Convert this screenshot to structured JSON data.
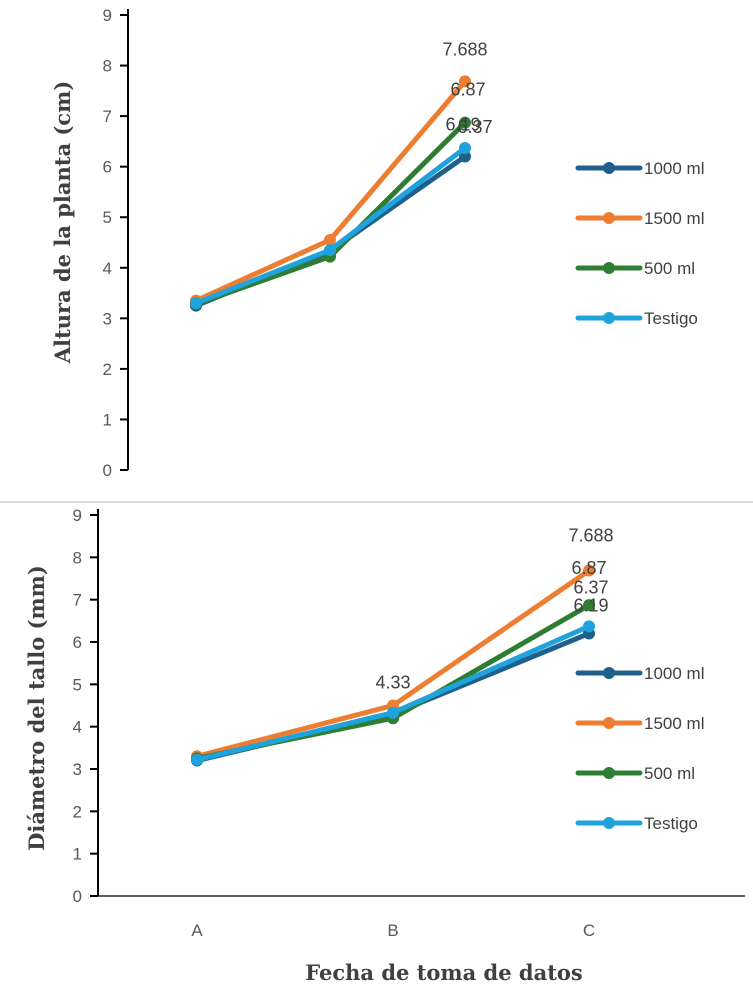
{
  "colors": {
    "1000 ml": "#1f5f8b",
    "1500 ml": "#ed7d31",
    "500 ml": "#2e7d32",
    "Testigo": "#1fa3dc",
    "axis": "#000000",
    "divider": "#d0d0d0"
  },
  "chart_data": [
    {
      "type": "line",
      "title": "",
      "ylabel": "Altura de la planta (cm)",
      "xlabel": "",
      "ylim": [
        0,
        9
      ],
      "yticks": [
        "0",
        "1",
        "2",
        "3",
        "4",
        "5",
        "6",
        "7",
        "8",
        "9"
      ],
      "categories": [
        "A",
        "B",
        "C"
      ],
      "show_category_labels": false,
      "grid": false,
      "legend_position": "right",
      "series": [
        {
          "name": "1000 ml",
          "values": [
            3.25,
            4.33,
            6.2
          ]
        },
        {
          "name": "1500 ml",
          "values": [
            3.35,
            4.55,
            7.688
          ]
        },
        {
          "name": "500 ml",
          "values": [
            3.28,
            4.22,
            6.87
          ]
        },
        {
          "name": "Testigo",
          "values": [
            3.3,
            4.35,
            6.37
          ]
        }
      ],
      "data_labels": [
        {
          "text": "7.688",
          "series": "1500 ml",
          "index": 2
        },
        {
          "text": "6.87",
          "series": "500 ml",
          "index": 2
        },
        {
          "text": "6.19",
          "series": "1000 ml",
          "index": 2
        },
        {
          "text": "6.37",
          "series": "Testigo",
          "index": 2
        }
      ]
    },
    {
      "type": "line",
      "title": "",
      "ylabel": "Diámetro del tallo (mm)",
      "xlabel": "Fecha de toma de datos",
      "ylim": [
        0,
        9
      ],
      "yticks": [
        "0",
        "1",
        "2",
        "3",
        "4",
        "5",
        "6",
        "7",
        "8",
        "9"
      ],
      "categories": [
        "A",
        "B",
        "C"
      ],
      "show_category_labels": true,
      "grid": false,
      "legend_position": "right",
      "series": [
        {
          "name": "1000 ml",
          "values": [
            3.2,
            4.3,
            6.2
          ]
        },
        {
          "name": "1500 ml",
          "values": [
            3.3,
            4.5,
            7.688
          ]
        },
        {
          "name": "500 ml",
          "values": [
            3.25,
            4.2,
            6.87
          ]
        },
        {
          "name": "Testigo",
          "values": [
            3.22,
            4.33,
            6.37
          ]
        }
      ],
      "data_labels": [
        {
          "text": "7.688",
          "series": "1500 ml",
          "index": 2
        },
        {
          "text": "4.33",
          "series": "Testigo",
          "index": 1
        },
        {
          "text": "6.87",
          "series": "500 ml",
          "index": 2
        },
        {
          "text": "6.37",
          "series": "Testigo",
          "index": 2
        },
        {
          "text": "6.19",
          "series": "1000 ml",
          "index": 2
        }
      ]
    }
  ]
}
